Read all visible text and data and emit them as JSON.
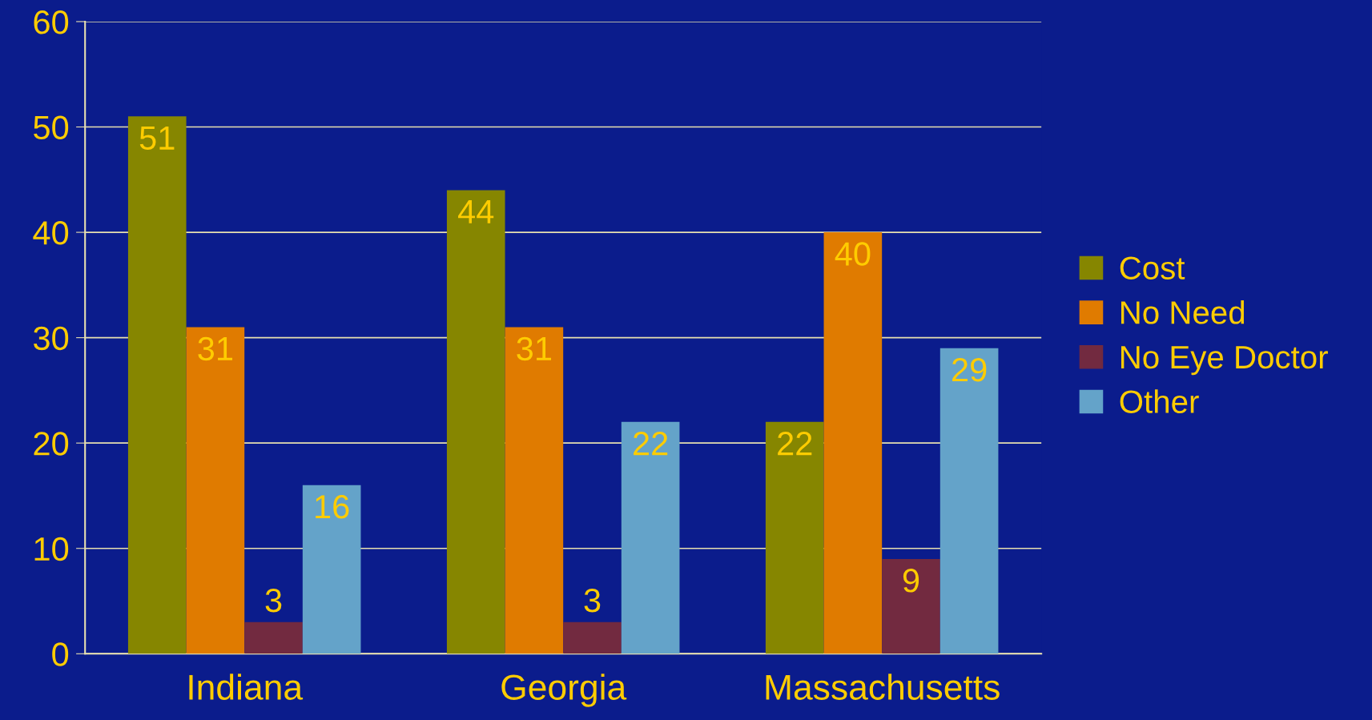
{
  "chart_data": {
    "type": "bar",
    "categories": [
      "Indiana",
      "Georgia",
      "Massachusetts"
    ],
    "series": [
      {
        "name": "Cost",
        "color": "#868600",
        "values": [
          51,
          44,
          22
        ]
      },
      {
        "name": "No Need",
        "color": "#e07b00",
        "values": [
          31,
          31,
          40
        ]
      },
      {
        "name": "No Eye Doctor",
        "color": "#722a40",
        "values": [
          3,
          3,
          9
        ]
      },
      {
        "name": "Other",
        "color": "#64a3c9",
        "values": [
          16,
          22,
          29
        ]
      }
    ],
    "ylim": [
      0,
      60
    ],
    "yticks": [
      0,
      10,
      20,
      30,
      40,
      50,
      60
    ],
    "grid": "y",
    "legend": "right",
    "data_labels": true
  }
}
